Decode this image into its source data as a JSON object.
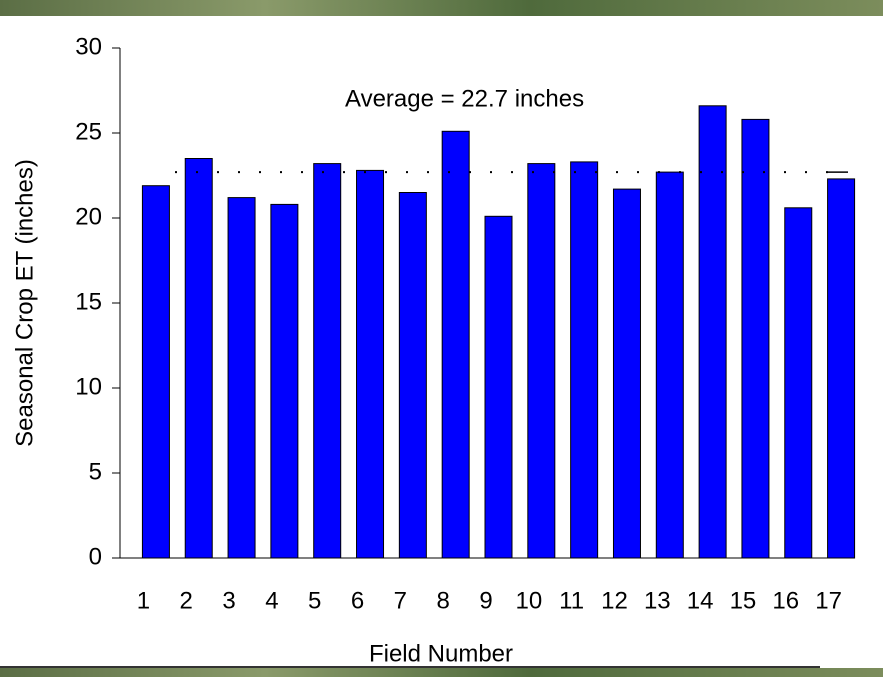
{
  "chart_data": {
    "type": "bar",
    "x_label": "Field Number",
    "y_label": "Seasonal Crop ET  (inches)",
    "annotation": "Average = 22.7 inches",
    "average": 22.7,
    "categories": [
      "1",
      "2",
      "3",
      "4",
      "5",
      "6",
      "7",
      "8",
      "9",
      "10",
      "11",
      "12",
      "13",
      "14",
      "15",
      "16",
      "17"
    ],
    "values": [
      21.9,
      23.5,
      21.2,
      20.8,
      23.2,
      22.8,
      21.5,
      25.1,
      20.1,
      23.2,
      23.3,
      21.7,
      22.7,
      26.6,
      25.8,
      20.6,
      22.3
    ],
    "color": "#0000ff",
    "ylim": [
      0,
      30
    ],
    "yticks": [
      0,
      5,
      10,
      15,
      20,
      25,
      30
    ]
  }
}
